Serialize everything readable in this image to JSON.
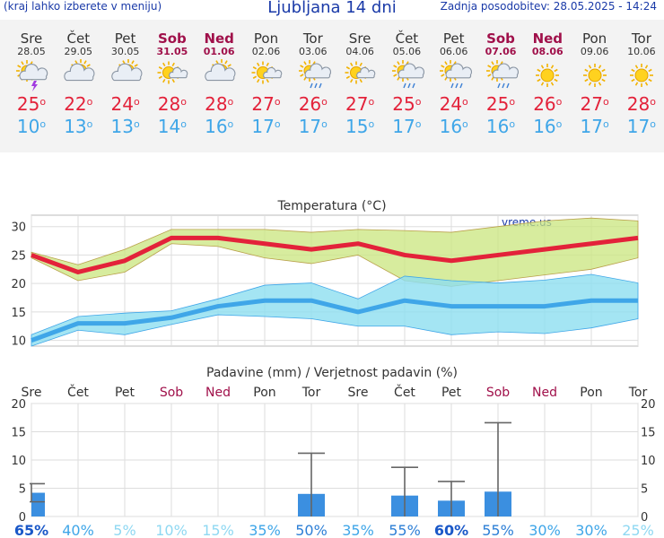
{
  "header": {
    "menu_hint": "(kraj lahko izberete v meniju)",
    "title": "Ljubljana 14 dni",
    "updated": "Zadnja posodobitev: 28.05.2025 - 14:24"
  },
  "colors": {
    "link_blue": "#1a3aa8",
    "tmax": "#e3223a",
    "tmin": "#3fa6e8",
    "weekend": "#a0104a",
    "precip_bar": "#3b8fe0"
  },
  "forecast": [
    {
      "day": "Sre",
      "date": "28.05",
      "icon": "sun-cloud-thunder-icon",
      "tmax": "25",
      "tmin": "10",
      "weekend": false
    },
    {
      "day": "Čet",
      "date": "29.05",
      "icon": "sun-cloud-icon",
      "tmax": "22",
      "tmin": "13",
      "weekend": false
    },
    {
      "day": "Pet",
      "date": "30.05",
      "icon": "sun-cloud-icon",
      "tmax": "24",
      "tmin": "13",
      "weekend": false
    },
    {
      "day": "Sob",
      "date": "31.05",
      "icon": "sun-small-cloud-icon",
      "tmax": "28",
      "tmin": "14",
      "weekend": true
    },
    {
      "day": "Ned",
      "date": "01.06",
      "icon": "sun-cloud-icon",
      "tmax": "28",
      "tmin": "16",
      "weekend": true
    },
    {
      "day": "Pon",
      "date": "02.06",
      "icon": "sun-small-cloud-icon",
      "tmax": "27",
      "tmin": "17",
      "weekend": false
    },
    {
      "day": "Tor",
      "date": "03.06",
      "icon": "sun-cloud-rain-icon",
      "tmax": "26",
      "tmin": "17",
      "weekend": false
    },
    {
      "day": "Sre",
      "date": "04.06",
      "icon": "sun-small-cloud-icon",
      "tmax": "27",
      "tmin": "15",
      "weekend": false
    },
    {
      "day": "Čet",
      "date": "05.06",
      "icon": "sun-cloud-rain-icon",
      "tmax": "25",
      "tmin": "17",
      "weekend": false
    },
    {
      "day": "Pet",
      "date": "06.06",
      "icon": "sun-cloud-rain-icon",
      "tmax": "24",
      "tmin": "16",
      "weekend": false
    },
    {
      "day": "Sob",
      "date": "07.06",
      "icon": "sun-cloud-rain-icon",
      "tmax": "25",
      "tmin": "16",
      "weekend": true
    },
    {
      "day": "Ned",
      "date": "08.06",
      "icon": "sun-icon",
      "tmax": "26",
      "tmin": "16",
      "weekend": true
    },
    {
      "day": "Pon",
      "date": "09.06",
      "icon": "sun-icon",
      "tmax": "27",
      "tmin": "17",
      "weekend": false
    },
    {
      "day": "Tor",
      "date": "10.06",
      "icon": "sun-icon",
      "tmax": "28",
      "tmin": "17",
      "weekend": false
    }
  ],
  "chart_data": [
    {
      "type": "line",
      "title": "Temperatura (°C)",
      "watermark": "vreme.us",
      "ylim": [
        9,
        32
      ],
      "yticks": [
        "10",
        "15",
        "20",
        "25",
        "30"
      ],
      "series": [
        {
          "values": [
            25,
            22,
            24,
            28,
            28,
            27,
            26,
            27,
            25,
            24,
            25,
            26,
            27,
            28
          ],
          "band_low": [
            24.5,
            20.5,
            22,
            27,
            26.5,
            24.5,
            23.5,
            25,
            20.5,
            19.5,
            20.5,
            21.5,
            22.5,
            24.5
          ],
          "band_high": [
            25.5,
            23.3,
            26,
            29.5,
            29.5,
            29.5,
            29,
            29.5,
            29.3,
            29,
            30,
            31,
            31.5,
            31
          ],
          "color": "#e3223a",
          "band_color": "#c9e67e"
        },
        {
          "values": [
            10,
            13,
            13,
            14,
            16,
            17,
            17,
            15,
            17,
            16,
            16,
            16,
            17,
            17
          ],
          "band_low": [
            9,
            11.8,
            11,
            12.8,
            14.5,
            14.2,
            13.8,
            12.5,
            12.5,
            11,
            11.5,
            11.2,
            12.2,
            13.8
          ],
          "band_high": [
            11,
            14.2,
            14.8,
            15.2,
            17.3,
            19.7,
            20.1,
            17.3,
            21.3,
            20.5,
            20.1,
            20.6,
            21.6,
            20.1
          ],
          "color": "#3fa6e8",
          "band_color": "#8ddff0"
        }
      ],
      "grid": true
    },
    {
      "type": "bar",
      "title": "Padavine (mm) / Verjetnost padavin (%)",
      "categories": [
        "Sre",
        "Čet",
        "Pet",
        "Sob",
        "Ned",
        "Pon",
        "Tor",
        "Sre",
        "Čet",
        "Pet",
        "Sob",
        "Ned",
        "Pon",
        "Tor"
      ],
      "ylim": [
        0,
        20
      ],
      "yticks": [
        "0",
        "5",
        "10",
        "15",
        "20"
      ],
      "values": [
        4.2,
        0,
        0,
        0,
        0,
        0,
        4.0,
        0,
        3.7,
        2.8,
        4.4,
        0,
        0,
        0
      ],
      "error_high": [
        5.8,
        0,
        0,
        0,
        0,
        0,
        11.2,
        0,
        8.7,
        6.2,
        16.6,
        0,
        0,
        0
      ],
      "error_low": [
        2.6,
        0,
        0,
        0,
        0,
        0,
        0,
        0,
        0,
        0,
        0,
        0,
        0,
        0
      ],
      "probability": [
        "65%",
        "40%",
        "5%",
        "10%",
        "15%",
        "35%",
        "50%",
        "35%",
        "55%",
        "60%",
        "55%",
        "30%",
        "30%",
        "25%"
      ],
      "probability_level": [
        65,
        40,
        5,
        10,
        15,
        35,
        50,
        35,
        55,
        60,
        55,
        30,
        30,
        25
      ],
      "grid": true
    }
  ]
}
